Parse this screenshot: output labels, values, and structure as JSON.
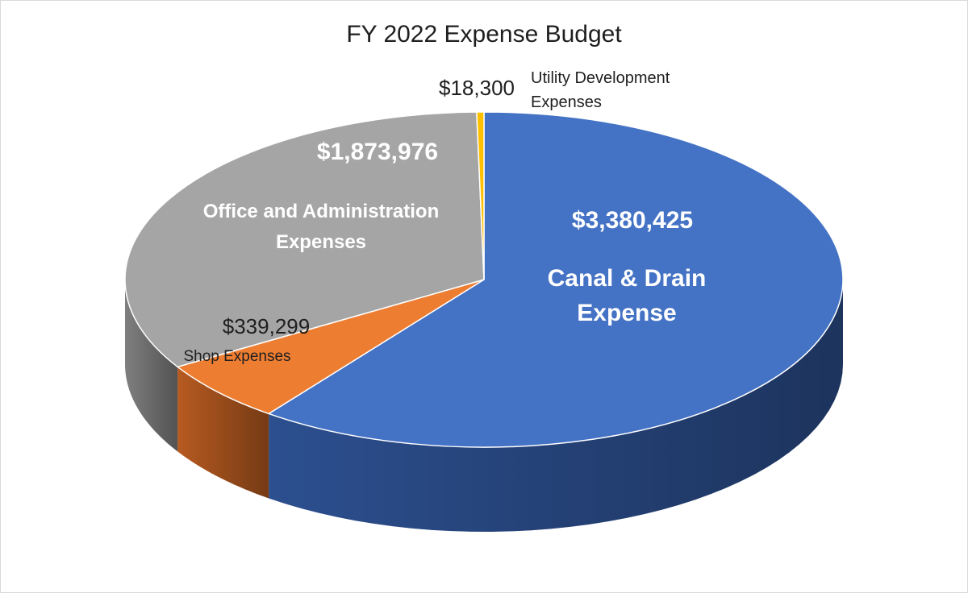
{
  "chart_data": {
    "type": "pie",
    "title": "FY 2022 Expense Budget",
    "slices": [
      {
        "label_lines": [
          "Canal & Drain",
          "Expense"
        ],
        "value": 3380425,
        "value_label": "$3,380,425",
        "color": "#4472C4",
        "side_color": "#2C4F8F"
      },
      {
        "label_lines": [
          "Shop Expenses"
        ],
        "value": 339299,
        "value_label": "$339,299",
        "color": "#ED7D31",
        "side_color": "#B65A20"
      },
      {
        "label_lines": [
          "Office and Administration",
          "Expenses"
        ],
        "value": 1873976,
        "value_label": "$1,873,976",
        "color": "#A5A5A5",
        "side_color": "#7F7F7F"
      },
      {
        "label_lines": [
          "Utility Development",
          "Expenses"
        ],
        "value": 18300,
        "value_label": "$18,300",
        "color": "#FFC000",
        "side_color": "#C79500"
      }
    ],
    "legend": "none",
    "style": "3d"
  }
}
